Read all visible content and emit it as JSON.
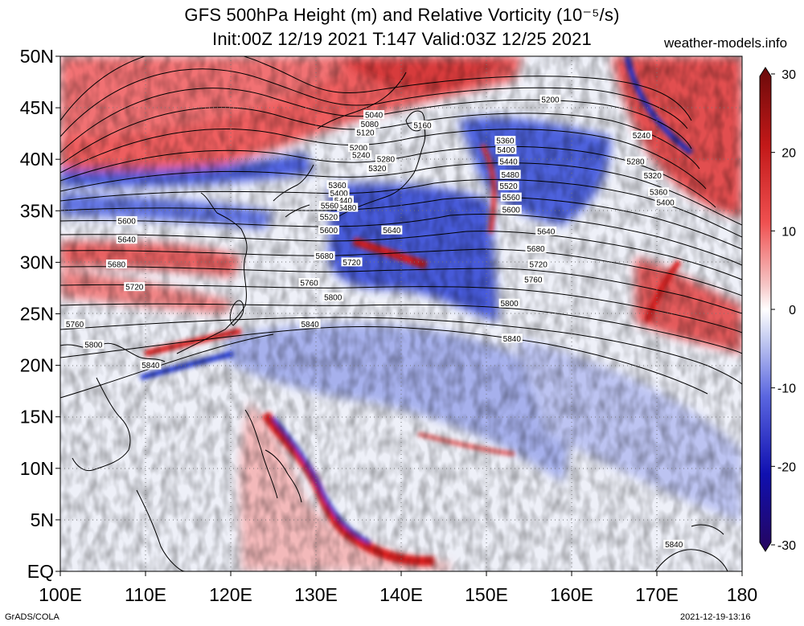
{
  "header": {
    "title_line1": "GFS 500hPa Height (m) and Relative Vorticity (10⁻⁵/s)",
    "title_line2": "Init:00Z 12/19 2021 T:147 Valid:03Z 12/25 2021",
    "credit": "weather-models.info"
  },
  "footer": {
    "left": "GrADS/COLA",
    "right": "2021-12-19-13:16"
  },
  "map": {
    "lon_range": [
      100,
      180
    ],
    "lat_range": [
      0,
      50
    ],
    "lon_ticks": [
      "100E",
      "110E",
      "120E",
      "130E",
      "140E",
      "150E",
      "160E",
      "170E",
      "180"
    ],
    "lat_ticks": [
      "50N",
      "45N",
      "40N",
      "35N",
      "30N",
      "25N",
      "20N",
      "15N",
      "10N",
      "5N",
      "EQ"
    ],
    "grid": "dotted",
    "fill_colors": {
      "positive": "#e02020",
      "negative": "#2030d0",
      "neutral": "#f4f4f8"
    }
  },
  "colorbar": {
    "labels": [
      "30",
      "20",
      "10",
      "0",
      "-10",
      "-20",
      "-30"
    ],
    "colors": [
      "#6a0a0a",
      "#c21818",
      "#ef5050",
      "#f6c6c6",
      "#ffffff",
      "#c6cdf2",
      "#5a66e0",
      "#1010b0",
      "#25055e"
    ]
  },
  "contour_labels": [
    {
      "text": "5200",
      "lon": 157.5,
      "lat": 45.8
    },
    {
      "text": "5240",
      "lon": 168.2,
      "lat": 42.3
    },
    {
      "text": "5280",
      "lon": 167.5,
      "lat": 39.8
    },
    {
      "text": "5320",
      "lon": 169.5,
      "lat": 38.4
    },
    {
      "text": "5360",
      "lon": 170.2,
      "lat": 36.8
    },
    {
      "text": "5400",
      "lon": 171.0,
      "lat": 35.8
    },
    {
      "text": "5040",
      "lon": 136.8,
      "lat": 44.3
    },
    {
      "text": "5080",
      "lon": 136.3,
      "lat": 43.4
    },
    {
      "text": "5120",
      "lon": 135.8,
      "lat": 42.6
    },
    {
      "text": "5160",
      "lon": 142.5,
      "lat": 43.3
    },
    {
      "text": "5200",
      "lon": 135.0,
      "lat": 41.1
    },
    {
      "text": "5240",
      "lon": 135.3,
      "lat": 40.4
    },
    {
      "text": "5280",
      "lon": 138.2,
      "lat": 40.0
    },
    {
      "text": "5320",
      "lon": 137.2,
      "lat": 39.1
    },
    {
      "text": "5360",
      "lon": 152.2,
      "lat": 41.8
    },
    {
      "text": "5400",
      "lon": 152.3,
      "lat": 40.9
    },
    {
      "text": "5440",
      "lon": 152.6,
      "lat": 39.8
    },
    {
      "text": "5480",
      "lon": 152.8,
      "lat": 38.5
    },
    {
      "text": "5520",
      "lon": 152.6,
      "lat": 37.4
    },
    {
      "text": "5560",
      "lon": 152.9,
      "lat": 36.3
    },
    {
      "text": "5600",
      "lon": 152.9,
      "lat": 35.1
    },
    {
      "text": "5360",
      "lon": 132.5,
      "lat": 37.5
    },
    {
      "text": "5400",
      "lon": 132.7,
      "lat": 36.7
    },
    {
      "text": "5440",
      "lon": 133.2,
      "lat": 36.0
    },
    {
      "text": "5480",
      "lon": 133.7,
      "lat": 35.3
    },
    {
      "text": "5560",
      "lon": 131.6,
      "lat": 35.5
    },
    {
      "text": "5520",
      "lon": 131.5,
      "lat": 34.4
    },
    {
      "text": "5600",
      "lon": 131.5,
      "lat": 33.1
    },
    {
      "text": "5640",
      "lon": 138.9,
      "lat": 33.1
    },
    {
      "text": "5600",
      "lon": 107.8,
      "lat": 34.0
    },
    {
      "text": "5640",
      "lon": 107.8,
      "lat": 32.2
    },
    {
      "text": "5640",
      "lon": 157.0,
      "lat": 33.0
    },
    {
      "text": "5680",
      "lon": 131.0,
      "lat": 30.6
    },
    {
      "text": "5720",
      "lon": 134.2,
      "lat": 30.0
    },
    {
      "text": "5680",
      "lon": 155.8,
      "lat": 31.3
    },
    {
      "text": "5720",
      "lon": 156.1,
      "lat": 29.8
    },
    {
      "text": "5680",
      "lon": 106.6,
      "lat": 29.8
    },
    {
      "text": "5720",
      "lon": 108.7,
      "lat": 27.6
    },
    {
      "text": "5760",
      "lon": 129.2,
      "lat": 28.0
    },
    {
      "text": "5760",
      "lon": 155.5,
      "lat": 28.3
    },
    {
      "text": "5800",
      "lon": 132.0,
      "lat": 26.6
    },
    {
      "text": "5800",
      "lon": 152.7,
      "lat": 26.0
    },
    {
      "text": "5840",
      "lon": 129.3,
      "lat": 24.0
    },
    {
      "text": "5840",
      "lon": 153.0,
      "lat": 22.6
    },
    {
      "text": "5760",
      "lon": 101.7,
      "lat": 24.0
    },
    {
      "text": "5800",
      "lon": 103.9,
      "lat": 22.0
    },
    {
      "text": "5840",
      "lon": 110.6,
      "lat": 20.0
    },
    {
      "text": "5840",
      "lon": 172.0,
      "lat": 2.6
    }
  ]
}
